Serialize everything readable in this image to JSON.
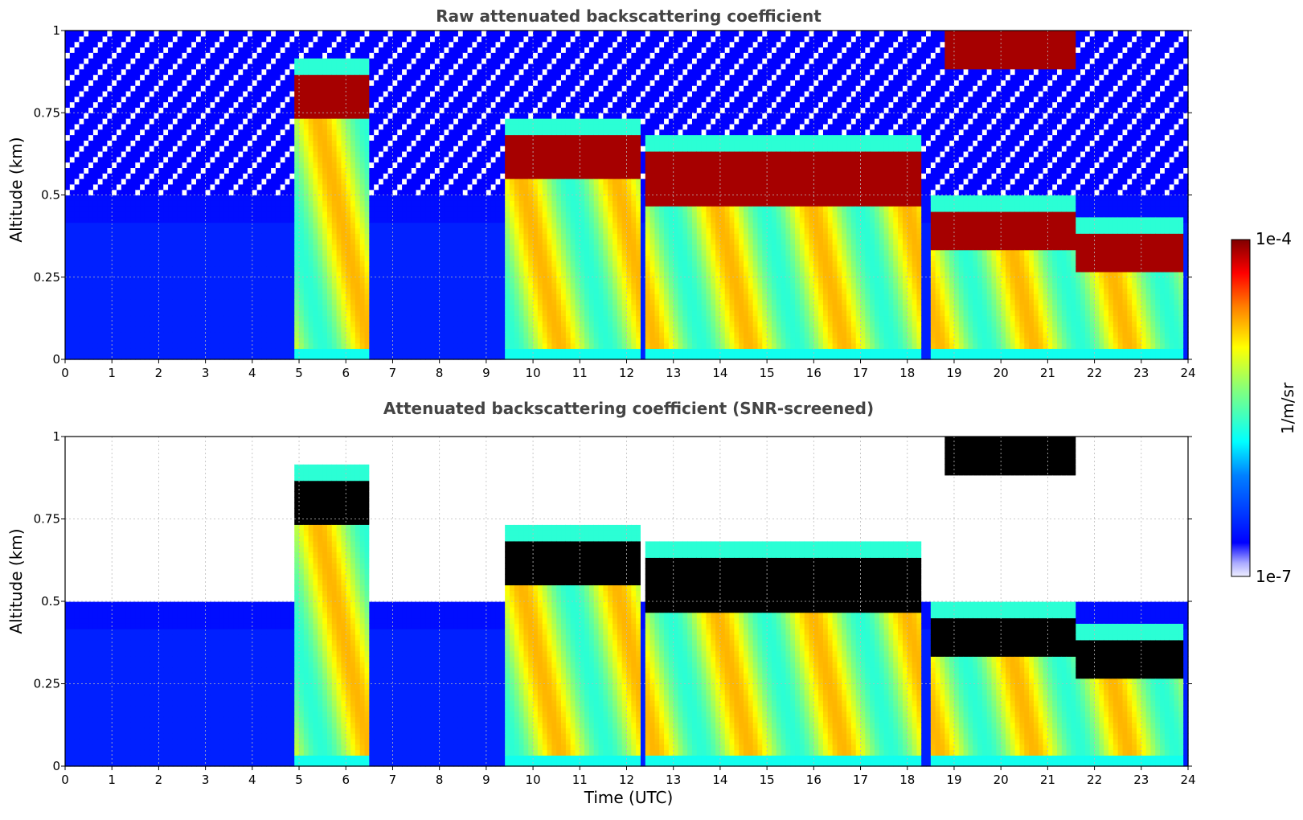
{
  "chart_data": [
    {
      "type": "heatmap",
      "title": "Raw attenuated backscattering coefficient",
      "xlabel": "",
      "ylabel": "Altitude (km)",
      "xlim": [
        0,
        24
      ],
      "ylim": [
        0,
        1
      ],
      "x_ticks": [
        "0",
        "1",
        "2",
        "3",
        "4",
        "5",
        "6",
        "7",
        "8",
        "9",
        "10",
        "11",
        "12",
        "13",
        "14",
        "15",
        "16",
        "17",
        "18",
        "19",
        "20",
        "21",
        "22",
        "23",
        "24"
      ],
      "y_ticks": [
        "0",
        "0.25",
        "0.5",
        "0.75",
        "1"
      ],
      "grid": true,
      "screened": false,
      "colormap": "jet",
      "cloud_layers": [
        {
          "start": 4.9,
          "end": 6.5,
          "base_km": 0.73,
          "top_km": 0.87
        },
        {
          "start": 9.4,
          "end": 12.3,
          "base_km": 0.55,
          "top_km": 0.68
        },
        {
          "start": 12.4,
          "end": 18.3,
          "base_km": 0.47,
          "top_km": 0.63
        },
        {
          "start": 18.5,
          "end": 21.6,
          "base_km": 0.33,
          "top_km": 0.45
        },
        {
          "start": 18.8,
          "end": 21.6,
          "base_km": 0.88,
          "top_km": 1.0
        },
        {
          "start": 21.6,
          "end": 23.9,
          "base_km": 0.26,
          "top_km": 0.38
        }
      ]
    },
    {
      "type": "heatmap",
      "title": "Attenuated backscattering coefficient (SNR-screened)",
      "xlabel": "Time (UTC)",
      "ylabel": "Altitude (km)",
      "xlim": [
        0,
        24
      ],
      "ylim": [
        0,
        1
      ],
      "x_ticks": [
        "0",
        "1",
        "2",
        "3",
        "4",
        "5",
        "6",
        "7",
        "8",
        "9",
        "10",
        "11",
        "12",
        "13",
        "14",
        "15",
        "16",
        "17",
        "18",
        "19",
        "20",
        "21",
        "22",
        "23",
        "24"
      ],
      "y_ticks": [
        "0",
        "0.25",
        "0.5",
        "0.75",
        "1"
      ],
      "grid": true,
      "screened": true,
      "colormap": "jet",
      "cloud_layers": [
        {
          "start": 4.9,
          "end": 6.5,
          "base_km": 0.73,
          "top_km": 0.87
        },
        {
          "start": 9.4,
          "end": 12.3,
          "base_km": 0.55,
          "top_km": 0.68
        },
        {
          "start": 12.4,
          "end": 18.3,
          "base_km": 0.47,
          "top_km": 0.63
        },
        {
          "start": 18.5,
          "end": 21.6,
          "base_km": 0.33,
          "top_km": 0.45
        },
        {
          "start": 18.8,
          "end": 21.6,
          "base_km": 0.88,
          "top_km": 1.0
        },
        {
          "start": 21.6,
          "end": 23.9,
          "base_km": 0.26,
          "top_km": 0.38
        }
      ]
    }
  ],
  "colorbar": {
    "label": "1/m/sr",
    "max_label": "1e-4",
    "min_label": "1e-7",
    "min_value": 1e-07,
    "max_value": 0.0001,
    "scale": "log",
    "colormap": "jet"
  }
}
